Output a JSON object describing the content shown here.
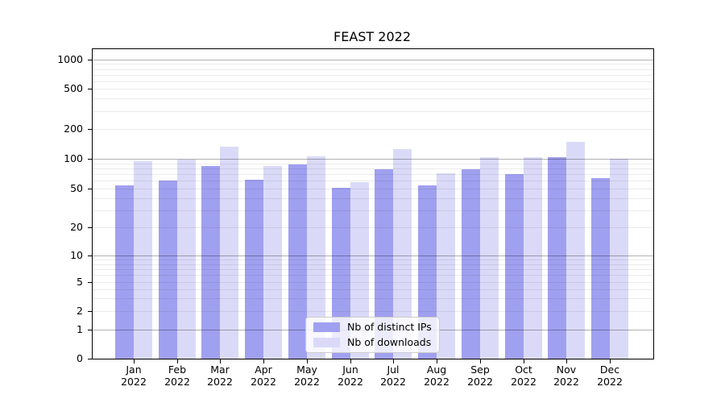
{
  "title": "FEAST 2022",
  "colors": {
    "ips": "#a0a0f0",
    "downloads": "#dadaf8",
    "grid_major": "rgba(0,0,0,0.30)",
    "grid_minor": "rgba(0,0,0,0.08)",
    "axis": "#000000",
    "text": "#000000",
    "legend_bg": "rgba(255,255,255,0.8)",
    "legend_border": "#cccccc"
  },
  "legend": {
    "items": [
      {
        "label": "Nb of distinct IPs",
        "series": "ips"
      },
      {
        "label": "Nb of downloads",
        "series": "downloads"
      }
    ]
  },
  "chart_data": {
    "type": "bar",
    "title": "FEAST 2022",
    "categories": [
      {
        "month": "Jan",
        "year": "2022"
      },
      {
        "month": "Feb",
        "year": "2022"
      },
      {
        "month": "Mar",
        "year": "2022"
      },
      {
        "month": "Apr",
        "year": "2022"
      },
      {
        "month": "May",
        "year": "2022"
      },
      {
        "month": "Jun",
        "year": "2022"
      },
      {
        "month": "Jul",
        "year": "2022"
      },
      {
        "month": "Aug",
        "year": "2022"
      },
      {
        "month": "Sep",
        "year": "2022"
      },
      {
        "month": "Oct",
        "year": "2022"
      },
      {
        "month": "Nov",
        "year": "2022"
      },
      {
        "month": "Dec",
        "year": "2022"
      }
    ],
    "series": [
      {
        "name": "Nb of distinct IPs",
        "color_key": "ips",
        "values": [
          54,
          60,
          84,
          62,
          88,
          51,
          79,
          54,
          79,
          70,
          104,
          64
        ]
      },
      {
        "name": "Nb of downloads",
        "color_key": "downloads",
        "values": [
          94,
          99,
          133,
          85,
          105,
          58,
          125,
          71,
          103,
          104,
          147,
          100
        ]
      }
    ],
    "xlabel": "",
    "ylabel": "",
    "yscale": "symlog",
    "y_ticks": [
      0,
      1,
      2,
      5,
      10,
      20,
      50,
      100,
      200,
      500,
      1000
    ],
    "y_major_gridlines": [
      1,
      10,
      100,
      1000
    ],
    "y_minor_gridlines": [
      2,
      3,
      4,
      5,
      6,
      7,
      8,
      9,
      20,
      30,
      40,
      50,
      60,
      70,
      80,
      90,
      200,
      300,
      400,
      500,
      600,
      700,
      800,
      900
    ],
    "ylim": [
      0,
      1160
    ],
    "grid": "on",
    "legend_position": "inside lower-center"
  }
}
